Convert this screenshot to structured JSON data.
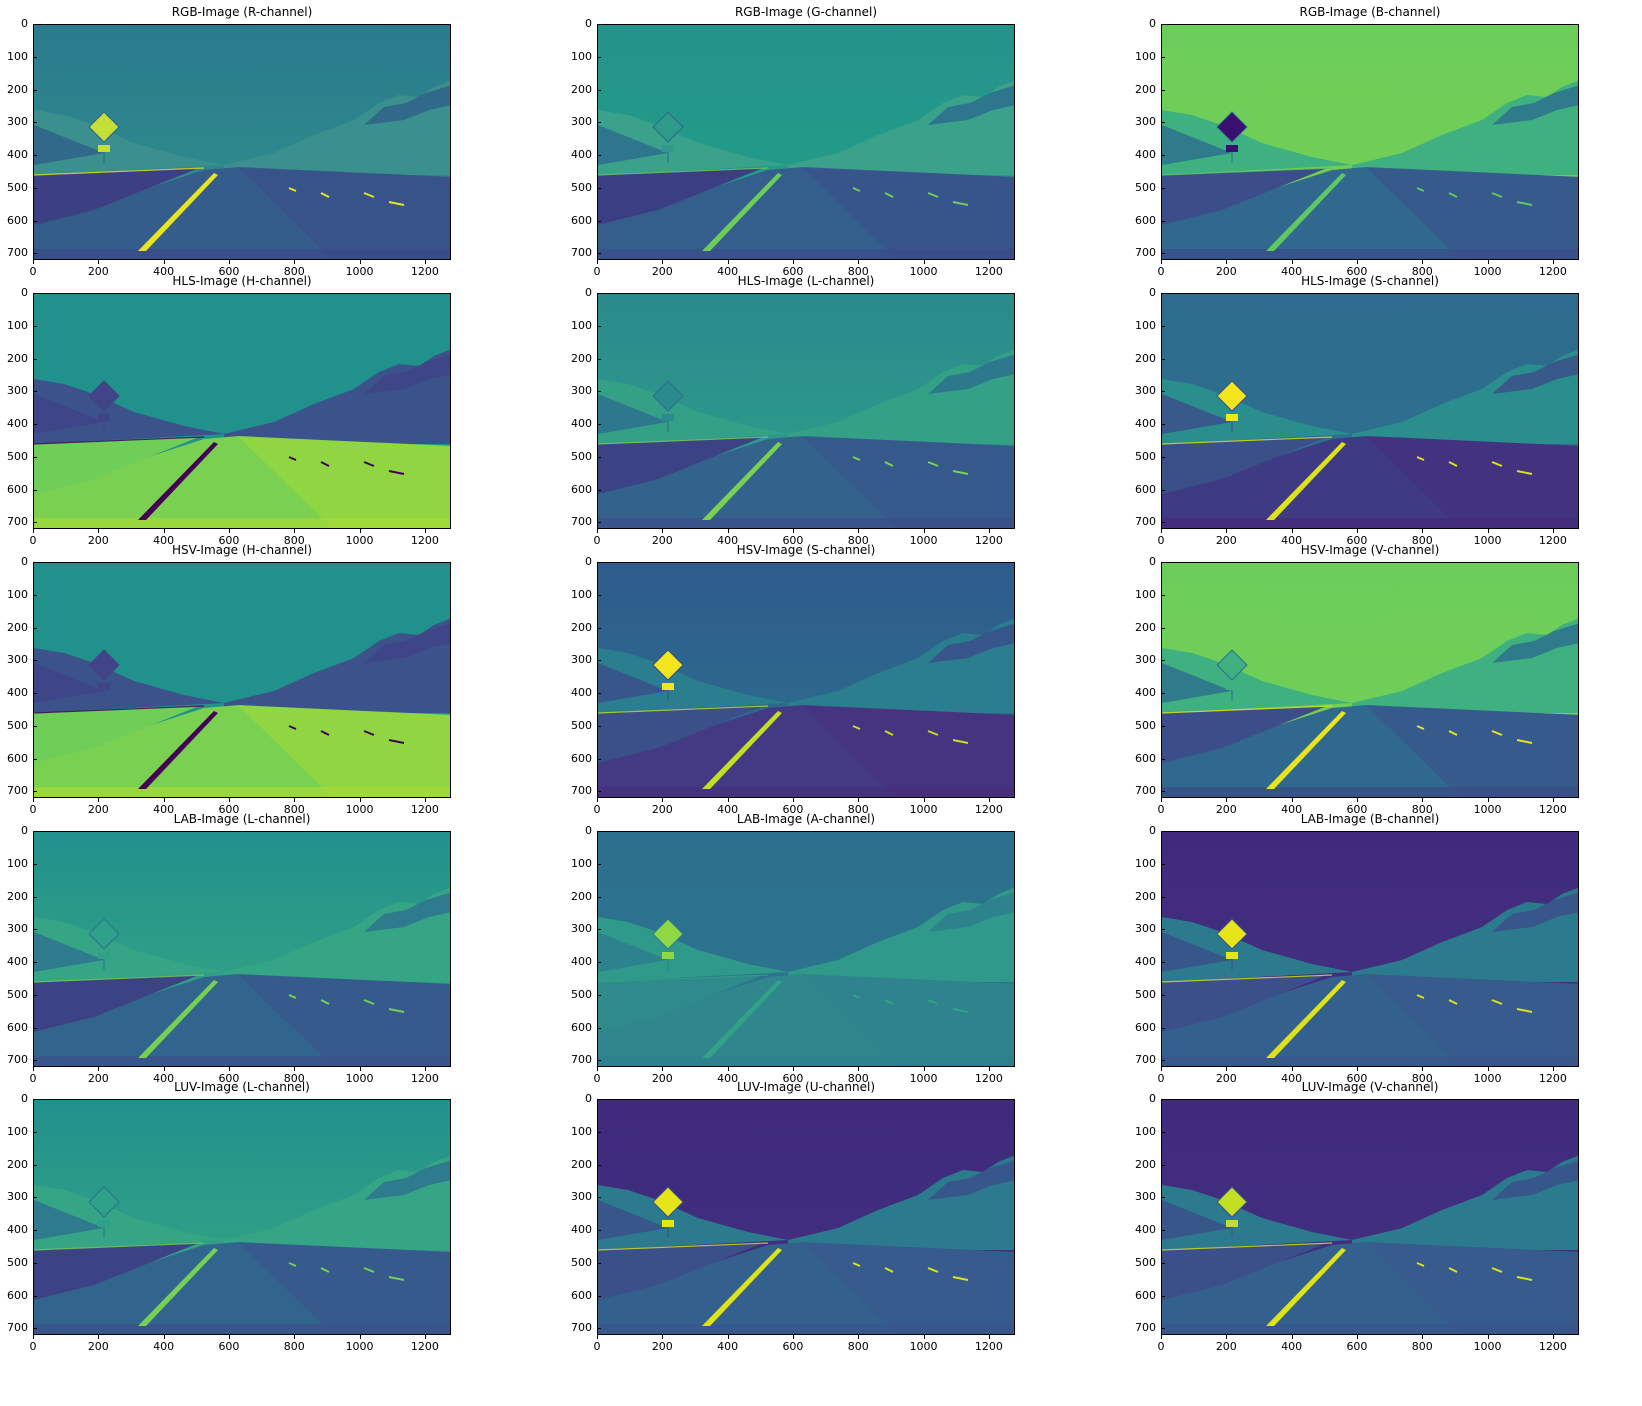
{
  "panels": [
    {
      "title": "RGB-Image (R-channel)",
      "sky": [
        "#2b7a8e",
        "#2f928b"
      ],
      "hills": "#3b8f8c",
      "hillsDark": "#2f5f8a",
      "road": "#355d8c",
      "roadDark": "#3a4a88",
      "lane": "#e8e41f",
      "sign": "#c4df3a",
      "leftGround": "#3d3f83"
    },
    {
      "title": "RGB-Image (G-channel)",
      "sky": [
        "#24938b",
        "#22a087"
      ],
      "hills": "#3aa18a",
      "hillsDark": "#2c6a8e",
      "road": "#345f8d",
      "roadDark": "#3b4b89",
      "lane": "#6ccd5a",
      "sign": "#2d9a8a",
      "leftGround": "#3b3e83"
    },
    {
      "title": "RGB-Image (B-channel)",
      "sky": [
        "#6ccd5a",
        "#74d055"
      ],
      "hills": "#3fb07f",
      "hillsDark": "#2c6e8e",
      "road": "#30688e",
      "roadDark": "#3b4b89",
      "lane": "#5ec962",
      "sign": "#3b0f70",
      "leftGround": "#3b4e8a"
    },
    {
      "title": "HLS-Image (H-channel)",
      "sky": [
        "#21918c",
        "#21918c"
      ],
      "hills": "#3b528b",
      "hillsDark": "#414487",
      "road": "#7ad151",
      "roadDark": "#a5db36",
      "lane": "#440154",
      "sign": "#414487",
      "leftGround": "#6ece58"
    },
    {
      "title": "HLS-Image (L-channel)",
      "sky": [
        "#2a8a8c",
        "#2fa08a"
      ],
      "hills": "#34a186",
      "hillsDark": "#2d6e8e",
      "road": "#33628d",
      "roadDark": "#3a4f89",
      "lane": "#7ad151",
      "sign": "#2a8a8c",
      "leftGround": "#3b4385"
    },
    {
      "title": "HLS-Image (S-channel)",
      "sky": [
        "#2e6b8e",
        "#2d708e"
      ],
      "hills": "#2a8e8c",
      "hillsDark": "#3b4d8a",
      "road": "#3e3a83",
      "roadDark": "#462a7b",
      "lane": "#dde318",
      "sign": "#f2e51d",
      "leftGround": "#3b4f89"
    },
    {
      "title": "HSV-Image (H-channel)",
      "sky": [
        "#21918c",
        "#21918c"
      ],
      "hills": "#3b528b",
      "hillsDark": "#414487",
      "road": "#7ad151",
      "roadDark": "#a5db36",
      "lane": "#440154",
      "sign": "#414487",
      "leftGround": "#6ece58"
    },
    {
      "title": "HSV-Image (S-channel)",
      "sky": [
        "#2e5b8c",
        "#2c718e"
      ],
      "hills": "#2b7e8e",
      "hillsDark": "#3b4d8a",
      "road": "#443a83",
      "roadDark": "#472d7b",
      "lane": "#c2df23",
      "sign": "#f2e51d",
      "leftGround": "#3b4f89"
    },
    {
      "title": "HSV-Image (V-channel)",
      "sky": [
        "#6ccd5a",
        "#72d056"
      ],
      "hills": "#3fb07f",
      "hillsDark": "#2c6e8e",
      "road": "#30688e",
      "roadDark": "#3b4b89",
      "lane": "#e8e41f",
      "sign": "#3fb07f",
      "leftGround": "#3b4e8a"
    },
    {
      "title": "LAB-Image (L-channel)",
      "sky": [
        "#21918c",
        "#3aa883"
      ],
      "hills": "#36a586",
      "hillsDark": "#2c708e",
      "road": "#32658e",
      "roadDark": "#3a508a",
      "lane": "#75d054",
      "sign": "#2fa08a",
      "leftGround": "#3b4385"
    },
    {
      "title": "LAB-Image (A-channel)",
      "sky": [
        "#2c6f8e",
        "#2d768e"
      ],
      "hills": "#2f9a89",
      "hillsDark": "#2c7d8e",
      "road": "#2f868d",
      "roadDark": "#2d7f8e",
      "lane": "#33a186",
      "sign": "#8fd744",
      "leftGround": "#2f8a8c"
    },
    {
      "title": "LAB-Image (B-channel)",
      "sky": [
        "#402a7c",
        "#433180"
      ],
      "hills": "#2c7a8e",
      "hillsDark": "#3b4f8a",
      "road": "#34608d",
      "roadDark": "#38568b",
      "lane": "#dde318",
      "sign": "#e7e419",
      "leftGround": "#3b4f89"
    },
    {
      "title": "LUV-Image (L-channel)",
      "sky": [
        "#21918c",
        "#3aa883"
      ],
      "hills": "#36a586",
      "hillsDark": "#2c708e",
      "road": "#32658e",
      "roadDark": "#3a508a",
      "lane": "#75d054",
      "sign": "#2fa08a",
      "leftGround": "#3b4385"
    },
    {
      "title": "LUV-Image (U-channel)",
      "sky": [
        "#3f2a7b",
        "#423080"
      ],
      "hills": "#2c7a8e",
      "hillsDark": "#3b4f8a",
      "road": "#34608d",
      "roadDark": "#38568b",
      "lane": "#dde318",
      "sign": "#e7e419",
      "leftGround": "#3b4f89"
    },
    {
      "title": "LUV-Image (V-channel)",
      "sky": [
        "#402a7c",
        "#433180"
      ],
      "hills": "#2c7a8e",
      "hillsDark": "#3b4f8a",
      "road": "#34608d",
      "roadDark": "#38568b",
      "lane": "#dde318",
      "sign": "#c2df23",
      "leftGround": "#3b4f89"
    }
  ],
  "yticks": [
    "0",
    "100",
    "200",
    "300",
    "400",
    "500",
    "600",
    "700"
  ],
  "xticks": [
    "0",
    "200",
    "400",
    "600",
    "800",
    "1000",
    "1200"
  ],
  "xmax": 1280,
  "ymax": 720
}
